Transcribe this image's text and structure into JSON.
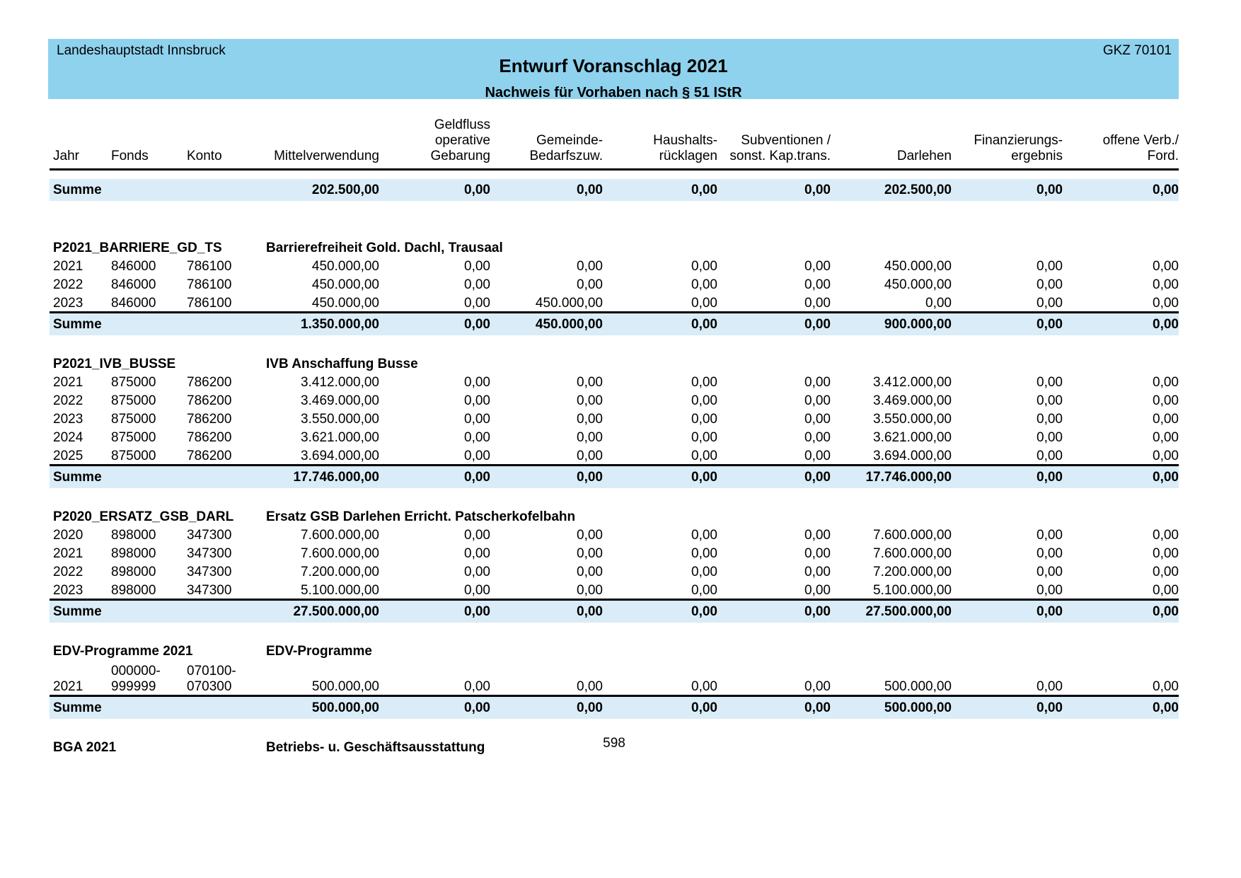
{
  "colors": {
    "header_band": "#8fd2ee",
    "sum_band": "#d9ecf7"
  },
  "page_header": {
    "org": "Landeshauptstadt Innsbruck",
    "gkz": "GKZ 70101",
    "title": "Entwurf Voranschlag 2021",
    "subtitle": "Nachweis für Vorhaben nach § 51 IStR"
  },
  "table": {
    "columns": [
      {
        "label": "Jahr"
      },
      {
        "label": "Fonds"
      },
      {
        "label": "Konto"
      },
      {
        "label": "Mittelverwendung"
      },
      {
        "label": "Geldfluss\noperative\nGebarung"
      },
      {
        "label": "Gemeinde-\nBedarfszuw."
      },
      {
        "label": "Haushalts-\nrücklagen"
      },
      {
        "label": "Subventionen /\nsonst. Kap.trans."
      },
      {
        "label": "Darlehen"
      },
      {
        "label": "Finanzierungs-\nergebnis"
      },
      {
        "label": "offene Verb./\nFord."
      }
    ],
    "sum_label": "Summe",
    "grand_total": {
      "label": "Summe",
      "values": [
        "202.500,00",
        "0,00",
        "0,00",
        "0,00",
        "0,00",
        "202.500,00",
        "0,00",
        "0,00"
      ]
    },
    "sections": [
      {
        "code": "P2021_BARRIERE_GD_TS",
        "description": "Barrierefreiheit Gold. Dachl, Trausaal",
        "rows": [
          {
            "jahr": "2021",
            "fonds": "846000",
            "konto": "786100",
            "values": [
              "450.000,00",
              "0,00",
              "0,00",
              "0,00",
              "0,00",
              "450.000,00",
              "0,00",
              "0,00"
            ]
          },
          {
            "jahr": "2022",
            "fonds": "846000",
            "konto": "786100",
            "values": [
              "450.000,00",
              "0,00",
              "0,00",
              "0,00",
              "0,00",
              "450.000,00",
              "0,00",
              "0,00"
            ]
          },
          {
            "jahr": "2023",
            "fonds": "846000",
            "konto": "786100",
            "values": [
              "450.000,00",
              "0,00",
              "450.000,00",
              "0,00",
              "0,00",
              "0,00",
              "0,00",
              "0,00"
            ]
          }
        ],
        "sum": {
          "label": "Summe",
          "values": [
            "1.350.000,00",
            "0,00",
            "450.000,00",
            "0,00",
            "0,00",
            "900.000,00",
            "0,00",
            "0,00"
          ]
        }
      },
      {
        "code": "P2021_IVB_BUSSE",
        "description": "IVB Anschaffung Busse",
        "rows": [
          {
            "jahr": "2021",
            "fonds": "875000",
            "konto": "786200",
            "values": [
              "3.412.000,00",
              "0,00",
              "0,00",
              "0,00",
              "0,00",
              "3.412.000,00",
              "0,00",
              "0,00"
            ]
          },
          {
            "jahr": "2022",
            "fonds": "875000",
            "konto": "786200",
            "values": [
              "3.469.000,00",
              "0,00",
              "0,00",
              "0,00",
              "0,00",
              "3.469.000,00",
              "0,00",
              "0,00"
            ]
          },
          {
            "jahr": "2023",
            "fonds": "875000",
            "konto": "786200",
            "values": [
              "3.550.000,00",
              "0,00",
              "0,00",
              "0,00",
              "0,00",
              "3.550.000,00",
              "0,00",
              "0,00"
            ]
          },
          {
            "jahr": "2024",
            "fonds": "875000",
            "konto": "786200",
            "values": [
              "3.621.000,00",
              "0,00",
              "0,00",
              "0,00",
              "0,00",
              "3.621.000,00",
              "0,00",
              "0,00"
            ]
          },
          {
            "jahr": "2025",
            "fonds": "875000",
            "konto": "786200",
            "values": [
              "3.694.000,00",
              "0,00",
              "0,00",
              "0,00",
              "0,00",
              "3.694.000,00",
              "0,00",
              "0,00"
            ]
          }
        ],
        "sum": {
          "label": "Summe",
          "values": [
            "17.746.000,00",
            "0,00",
            "0,00",
            "0,00",
            "0,00",
            "17.746.000,00",
            "0,00",
            "0,00"
          ]
        }
      },
      {
        "code": "P2020_ERSATZ_GSB_DARL",
        "description": "Ersatz GSB Darlehen Erricht. Patscherkofelbahn",
        "rows": [
          {
            "jahr": "2020",
            "fonds": "898000",
            "konto": "347300",
            "values": [
              "7.600.000,00",
              "0,00",
              "0,00",
              "0,00",
              "0,00",
              "7.600.000,00",
              "0,00",
              "0,00"
            ]
          },
          {
            "jahr": "2021",
            "fonds": "898000",
            "konto": "347300",
            "values": [
              "7.600.000,00",
              "0,00",
              "0,00",
              "0,00",
              "0,00",
              "7.600.000,00",
              "0,00",
              "0,00"
            ]
          },
          {
            "jahr": "2022",
            "fonds": "898000",
            "konto": "347300",
            "values": [
              "7.200.000,00",
              "0,00",
              "0,00",
              "0,00",
              "0,00",
              "7.200.000,00",
              "0,00",
              "0,00"
            ]
          },
          {
            "jahr": "2023",
            "fonds": "898000",
            "konto": "347300",
            "values": [
              "5.100.000,00",
              "0,00",
              "0,00",
              "0,00",
              "0,00",
              "5.100.000,00",
              "0,00",
              "0,00"
            ]
          }
        ],
        "sum": {
          "label": "Summe",
          "values": [
            "27.500.000,00",
            "0,00",
            "0,00",
            "0,00",
            "0,00",
            "27.500.000,00",
            "0,00",
            "0,00"
          ]
        }
      },
      {
        "code": "EDV-Programme 2021",
        "description": "EDV-Programme",
        "tall_rows": true,
        "rows": [
          {
            "jahr": "2021",
            "fonds": "000000-\n999999",
            "konto": "070100-\n070300",
            "values": [
              "500.000,00",
              "0,00",
              "0,00",
              "0,00",
              "0,00",
              "500.000,00",
              "0,00",
              "0,00"
            ]
          }
        ],
        "sum": {
          "label": "Summe",
          "values": [
            "500.000,00",
            "0,00",
            "0,00",
            "0,00",
            "0,00",
            "500.000,00",
            "0,00",
            "0,00"
          ]
        }
      },
      {
        "code": "BGA 2021",
        "description": "Betriebs- u. Geschäftsausstattung",
        "rows": [],
        "sum": null
      }
    ]
  },
  "footer": {
    "page_number": "598"
  }
}
